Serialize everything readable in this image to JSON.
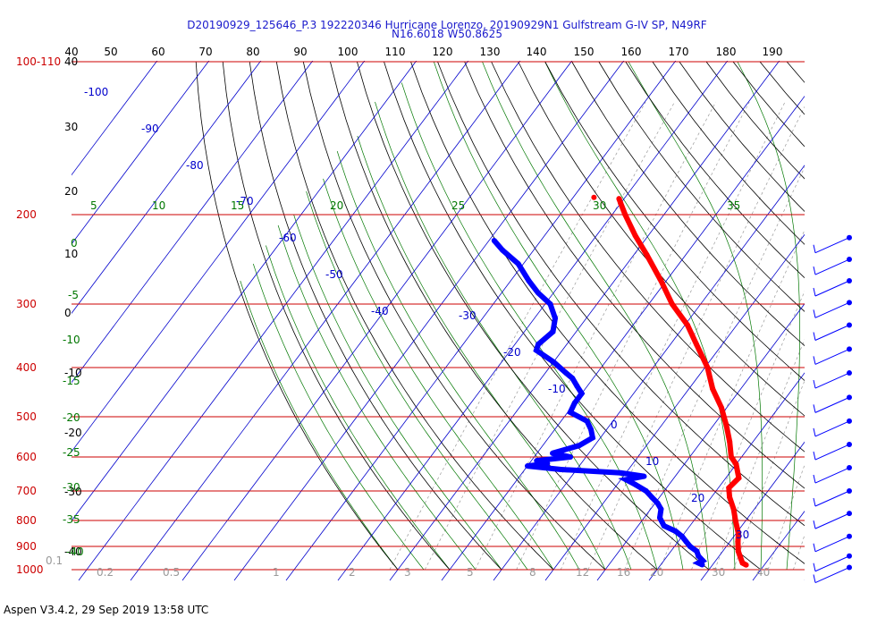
{
  "header": {
    "title_line1": "D20190929_125646_P.3 192220346 Hurricane Lorenzo, 20190929N1 Gulfstream G-IV SP, N49RF",
    "title_line2": "N16.6018 W50.8625"
  },
  "footer": {
    "text": "Aspen V3.4.2, 29 Sep 2019  13:58 UTC"
  },
  "colors": {
    "temperature": "#ff0000",
    "dewpoint": "#0000ff",
    "isobar": "#cc0000",
    "isotherm": "#0000cc",
    "dry_adiabat": "#000000",
    "moist_adiabat": "#007700",
    "mixing_ratio": "#999999",
    "wind_barb": "#0000ff"
  },
  "chart_data": {
    "type": "scatter",
    "diagram": "skew-T log-P",
    "title": "D20190929_125646_P.3 192220346 Hurricane Lorenzo, 20190929N1 Gulfstream G-IV SP, N49RF",
    "subtitle": "N16.6018 W50.8625",
    "xlabel": "",
    "ylabel": "",
    "y_scale": "log",
    "ylim": [
      1000,
      100
    ],
    "grid": true,
    "pressure_labels": [
      "100-110",
      "200",
      "300",
      "400",
      "500",
      "600",
      "700",
      "800",
      "900",
      "1000"
    ],
    "isobars": [
      100,
      200,
      300,
      400,
      500,
      600,
      700,
      800,
      900,
      1000
    ],
    "top_axis_labels": [
      "40",
      "50",
      "60",
      "70",
      "80",
      "90",
      "100",
      "110",
      "120",
      "130",
      "140",
      "150",
      "160",
      "170",
      "180",
      "190"
    ],
    "left_axis_labels": [
      "40",
      "30",
      "20",
      "10",
      "0",
      "-10",
      "-20",
      "-30",
      "-40"
    ],
    "isotherm_labels": [
      "-100",
      "-90",
      "-80",
      "-70",
      "-60",
      "-50",
      "-40",
      "-30",
      "-20",
      "-10",
      "0",
      "10",
      "20",
      "30"
    ],
    "isotherms": [
      -100,
      -90,
      -80,
      -70,
      -60,
      -50,
      -40,
      -30,
      -20,
      -10,
      0,
      10,
      20,
      30,
      40
    ],
    "moist_adiabat_labels": [
      "5",
      "10",
      "15",
      "20",
      "25",
      "30",
      "35",
      "0",
      "-5",
      "-10",
      "-15",
      "-20",
      "-25",
      "-30",
      "-35",
      "-40"
    ],
    "mixing_ratio_labels": [
      "0.1",
      "0.2",
      "0.5",
      "1",
      "2",
      "3",
      "5",
      "8",
      "12",
      "16",
      "20",
      "30",
      "40"
    ],
    "series": [
      {
        "key": "temperature",
        "points": [
          [
            979,
            26.5
          ],
          [
            970,
            25.5
          ],
          [
            950,
            24.5
          ],
          [
            920,
            23.0
          ],
          [
            880,
            21.5
          ],
          [
            850,
            20.5
          ],
          [
            800,
            18.0
          ],
          [
            760,
            16.0
          ],
          [
            720,
            13.5
          ],
          [
            700,
            12.5
          ],
          [
            690,
            12.0
          ],
          [
            660,
            12.5
          ],
          [
            620,
            10.0
          ],
          [
            600,
            8.0
          ],
          [
            560,
            5.5
          ],
          [
            520,
            2.5
          ],
          [
            480,
            -1.0
          ],
          [
            440,
            -5.5
          ],
          [
            400,
            -9.5
          ],
          [
            360,
            -15.0
          ],
          [
            330,
            -19.5
          ],
          [
            300,
            -25.5
          ],
          [
            270,
            -31.0
          ],
          [
            240,
            -37.5
          ],
          [
            220,
            -42.5
          ],
          [
            200,
            -47.5
          ],
          [
            190,
            -50.0
          ],
          [
            186,
            -51.0
          ],
          [
            185,
            -56.0
          ]
        ]
      },
      {
        "key": "dewpoint",
        "points": [
          [
            978,
            18.0
          ],
          [
            970,
            17.0
          ],
          [
            960,
            17.5
          ],
          [
            940,
            16.0
          ],
          [
            920,
            15.0
          ],
          [
            900,
            13.0
          ],
          [
            880,
            11.5
          ],
          [
            860,
            10.0
          ],
          [
            840,
            8.0
          ],
          [
            820,
            5.0
          ],
          [
            790,
            3.0
          ],
          [
            760,
            2.0
          ],
          [
            740,
            0.5
          ],
          [
            720,
            -1.5
          ],
          [
            700,
            -3.5
          ],
          [
            680,
            -6.5
          ],
          [
            665,
            -9.0
          ],
          [
            655,
            -6.0
          ],
          [
            645,
            -11.0
          ],
          [
            635,
            -23.0
          ],
          [
            625,
            -30.0
          ],
          [
            618,
            -26.5
          ],
          [
            610,
            -29.0
          ],
          [
            600,
            -23.0
          ],
          [
            590,
            -27.0
          ],
          [
            570,
            -23.0
          ],
          [
            550,
            -21.5
          ],
          [
            530,
            -23.0
          ],
          [
            510,
            -25.0
          ],
          [
            490,
            -29.5
          ],
          [
            470,
            -30.0
          ],
          [
            450,
            -30.0
          ],
          [
            435,
            -32.0
          ],
          [
            420,
            -34.0
          ],
          [
            410,
            -36.0
          ],
          [
            390,
            -40.0
          ],
          [
            370,
            -45.0
          ],
          [
            360,
            -45.5
          ],
          [
            340,
            -44.5
          ],
          [
            320,
            -46.0
          ],
          [
            300,
            -49.0
          ],
          [
            285,
            -53.0
          ],
          [
            270,
            -56.5
          ],
          [
            250,
            -61.0
          ],
          [
            235,
            -66.0
          ],
          [
            225,
            -69.0
          ]
        ]
      }
    ],
    "wind_barbs": [
      {
        "pressure": 222
      },
      {
        "pressure": 245
      },
      {
        "pressure": 270
      },
      {
        "pressure": 298
      },
      {
        "pressure": 330
      },
      {
        "pressure": 368
      },
      {
        "pressure": 410
      },
      {
        "pressure": 458
      },
      {
        "pressure": 510
      },
      {
        "pressure": 567
      },
      {
        "pressure": 630
      },
      {
        "pressure": 700
      },
      {
        "pressure": 775
      },
      {
        "pressure": 860
      },
      {
        "pressure": 940
      },
      {
        "pressure": 990
      }
    ]
  }
}
